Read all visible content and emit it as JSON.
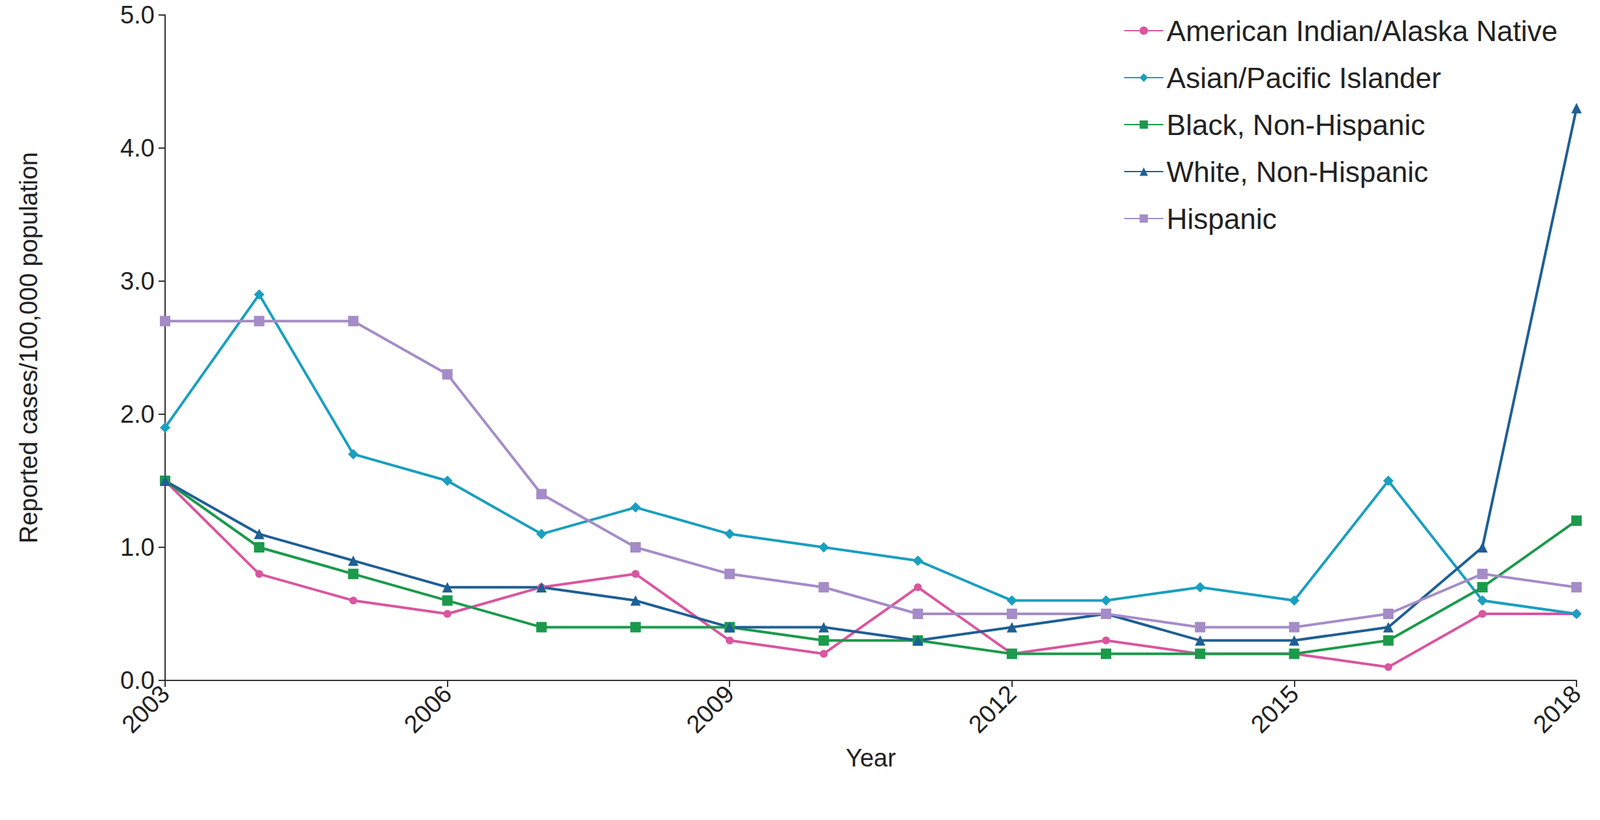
{
  "chart_data": {
    "type": "line",
    "x_label": "Year",
    "y_label": "Reported cases/100,000 population",
    "x": [
      2003,
      2004,
      2005,
      2006,
      2007,
      2008,
      2009,
      2010,
      2011,
      2012,
      2013,
      2014,
      2015,
      2016,
      2017,
      2018
    ],
    "xlim": [
      2003,
      2018
    ],
    "xticks": [
      2003,
      2006,
      2009,
      2012,
      2015,
      2018
    ],
    "ylim": [
      0,
      5
    ],
    "yticks": [
      {
        "value": 0,
        "label": "0.0"
      },
      {
        "value": 1,
        "label": "1.0"
      },
      {
        "value": 2,
        "label": "2.0"
      },
      {
        "value": 3,
        "label": "3.0"
      },
      {
        "value": 4,
        "label": "4.0"
      },
      {
        "value": 5,
        "label": "5.0"
      }
    ],
    "grid": false,
    "legend": "upper right",
    "series": [
      {
        "name": "American Indian/Alaska Native",
        "color": "#d9569f",
        "marker": "circle",
        "values": [
          1.5,
          0.8,
          0.6,
          0.5,
          0.7,
          0.8,
          0.3,
          0.2,
          0.7,
          0.2,
          0.3,
          0.2,
          0.2,
          0.1,
          0.5,
          0.5
        ]
      },
      {
        "name": "Asian/Pacific Islander",
        "color": "#1a9fbf",
        "marker": "diamond",
        "values": [
          1.9,
          2.9,
          1.7,
          1.5,
          1.1,
          1.3,
          1.1,
          1.0,
          0.9,
          0.6,
          0.6,
          0.7,
          0.6,
          1.5,
          0.6,
          0.5
        ]
      },
      {
        "name": "Black, Non-Hispanic",
        "color": "#1b9a4b",
        "marker": "square",
        "values": [
          1.5,
          1.0,
          0.8,
          0.6,
          0.4,
          0.4,
          0.4,
          0.3,
          0.3,
          0.2,
          0.2,
          0.2,
          0.2,
          0.3,
          0.7,
          1.2
        ]
      },
      {
        "name": "White, Non-Hispanic",
        "color": "#1f5f94",
        "marker": "triangle",
        "values": [
          1.5,
          1.1,
          0.9,
          0.7,
          0.7,
          0.6,
          0.4,
          0.4,
          0.3,
          0.4,
          0.5,
          0.3,
          0.3,
          0.4,
          1.0,
          4.3
        ]
      },
      {
        "name": "Hispanic",
        "color": "#a58cc8",
        "marker": "square",
        "values": [
          2.7,
          2.7,
          2.7,
          2.3,
          1.4,
          1.0,
          0.8,
          0.7,
          0.5,
          0.5,
          0.5,
          0.4,
          0.4,
          0.5,
          0.8,
          0.7
        ]
      }
    ]
  }
}
